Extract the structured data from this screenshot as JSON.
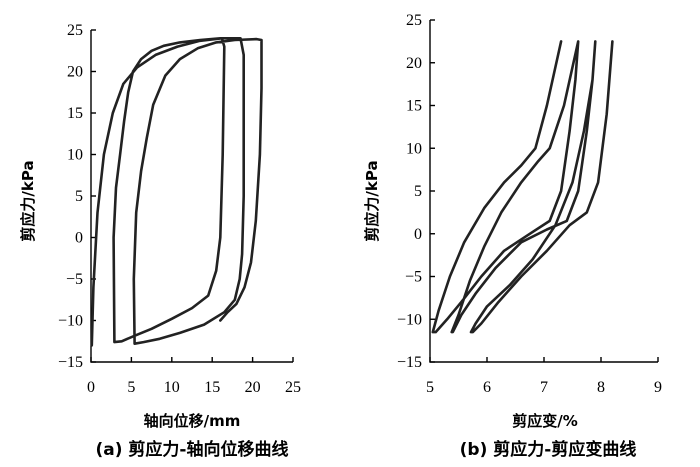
{
  "chart_data": [
    {
      "type": "line",
      "xlabel": "轴向位移/mm",
      "ylabel": "剪应力/kPa",
      "caption": "(a) 剪应力-轴向位移曲线",
      "xlim": [
        0,
        25
      ],
      "ylim": [
        -15,
        25
      ],
      "xticks": [
        "0",
        "5",
        "10",
        "15",
        "20",
        "25"
      ],
      "yticks": [
        "−15",
        "−10",
        "−5",
        "0",
        "5",
        "10",
        "15",
        "20",
        "25"
      ],
      "series": [
        {
          "x": [
            0.1,
            0.3,
            0.8,
            1.6,
            2.7,
            4.0,
            5.7,
            8.0,
            10.7,
            13.5,
            16.2,
            16.5,
            16.3,
            16.0,
            15.5,
            14.5,
            12.5,
            10.0,
            7.5,
            5.5,
            3.8,
            2.9,
            2.8,
            3.1,
            3.6,
            4.1,
            4.6,
            5.2,
            6.2,
            7.5,
            9.0,
            11.0,
            13.5,
            16.0,
            18.5,
            18.9,
            18.9,
            18.7,
            18.4,
            17.8,
            16.5,
            14.0,
            11.0,
            8.5,
            6.5,
            5.4,
            5.3,
            5.6,
            6.2,
            6.9,
            7.7,
            9.2,
            11.0,
            13.2,
            15.5,
            17.8,
            20.5,
            21.1,
            21.1,
            20.9,
            20.4,
            19.8,
            19.0,
            18.0,
            16.9,
            16.0
          ],
          "y": [
            -13,
            -6,
            3,
            10,
            15,
            18.5,
            20.5,
            22,
            23,
            23.7,
            24,
            23,
            10,
            0,
            -4,
            -7,
            -8.5,
            -9.8,
            -11,
            -11.8,
            -12.5,
            -12.6,
            0,
            6,
            10,
            14,
            17.5,
            20,
            21.5,
            22.5,
            23.1,
            23.5,
            23.8,
            24,
            24,
            22,
            5,
            -2,
            -5,
            -7.5,
            -9,
            -10.5,
            -11.5,
            -12.2,
            -12.6,
            -12.8,
            -5,
            3,
            8,
            12,
            16,
            19.5,
            21.5,
            22.8,
            23.5,
            23.8,
            23.9,
            23.8,
            18,
            10,
            2,
            -3,
            -6,
            -8,
            -9,
            -10
          ]
        }
      ]
    },
    {
      "type": "line",
      "xlabel": "剪应变/%",
      "ylabel": "剪应力/kPa",
      "caption": "(b) 剪应力-剪应变曲线",
      "xlim": [
        5,
        9
      ],
      "ylim": [
        -15,
        25
      ],
      "xticks": [
        "5",
        "6",
        "7",
        "8",
        "9"
      ],
      "yticks": [
        "−15",
        "−10",
        "−5",
        "0",
        "5",
        "10",
        "15",
        "20",
        "25"
      ],
      "series": [
        {
          "x": [
            7.3,
            7.05,
            6.85,
            6.6,
            6.3,
            5.95,
            5.6,
            5.35,
            5.15,
            5.05,
            5.1,
            5.3,
            5.55,
            5.9,
            6.3,
            6.75,
            7.1,
            7.3,
            7.45,
            7.55,
            7.6,
            7.35,
            7.1,
            6.9,
            6.6,
            6.25,
            5.95,
            5.7,
            5.5,
            5.38,
            5.4,
            5.55,
            5.8,
            6.15,
            6.6,
            7.05,
            7.4,
            7.6,
            7.75,
            7.85,
            7.9,
            7.85,
            7.7,
            7.5,
            7.2,
            6.8,
            6.4,
            6.0,
            5.8,
            5.72,
            5.75,
            5.9,
            6.2,
            6.6,
            7.05,
            7.45,
            7.75,
            7.95,
            8.1,
            8.2
          ],
          "y": [
            22.5,
            15,
            10,
            8,
            6,
            3,
            -1,
            -5,
            -9,
            -11.5,
            -11.5,
            -10,
            -8,
            -5,
            -2,
            0,
            1.5,
            5,
            12,
            18,
            22.5,
            15,
            10,
            8.5,
            6,
            2.5,
            -1.5,
            -5.5,
            -9.5,
            -11.5,
            -11.5,
            -9.5,
            -7,
            -4,
            -1,
            0.5,
            1.5,
            5,
            12,
            18,
            22.5,
            18,
            12,
            6,
            1,
            -3,
            -6,
            -8.5,
            -10.5,
            -11.5,
            -11.5,
            -10.5,
            -8,
            -5,
            -2,
            1,
            2.5,
            6,
            14,
            22.5
          ]
        }
      ]
    }
  ]
}
